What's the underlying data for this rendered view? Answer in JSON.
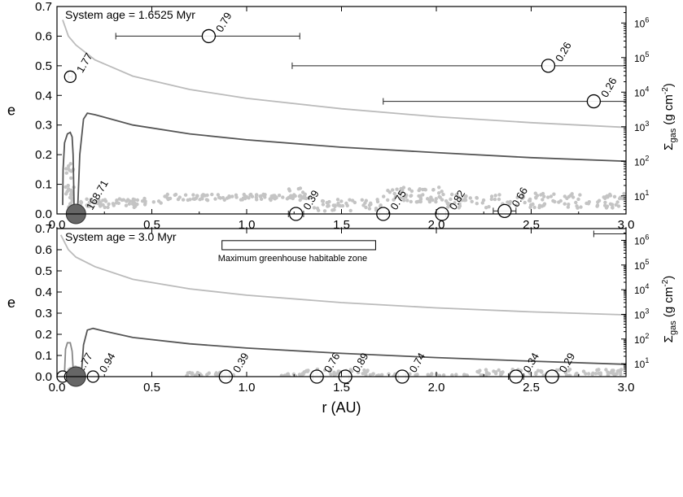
{
  "chart_data": [
    {
      "type": "scatter",
      "annotation": "System age = 1.6525 Myr",
      "xlim": [
        0,
        3.0
      ],
      "ylim": [
        0,
        0.7
      ],
      "ylabel": "e",
      "y2label_main": "Σ",
      "y2label_sub": "gas",
      "y2label_unit": "(g cm",
      "y2label_exp": "-2",
      "y2label_close": ")",
      "xticks": [
        0.0,
        0.5,
        1.0,
        1.5,
        2.0,
        2.5,
        3.0
      ],
      "xtick_labels": [
        "0.0",
        "0.5",
        "1.0",
        "1.5",
        "2.0",
        "2.5",
        "3.0"
      ],
      "yticks": [
        0.0,
        0.1,
        0.2,
        0.3,
        0.4,
        0.5,
        0.6,
        0.7
      ],
      "ytick_labels": [
        "0.0",
        "0.1",
        "0.2",
        "0.3",
        "0.4",
        "0.5",
        "0.6",
        "0.7"
      ],
      "y2_scale": "log",
      "y2lim": [
        3,
        3000000
      ],
      "y2ticks": [
        10,
        100,
        1000,
        10000,
        100000,
        1000000
      ],
      "y2tick_labels": [
        {
          "base": "10",
          "exp": "1"
        },
        {
          "base": "10",
          "exp": "2"
        },
        {
          "base": "10",
          "exp": "3"
        },
        {
          "base": "10",
          "exp": "4"
        },
        {
          "base": "10",
          "exp": "5"
        },
        {
          "base": "10",
          "exp": "6"
        }
      ],
      "gas_curves": [
        {
          "color": "#bbbbbb",
          "points": [
            [
              0.03,
              0.655
            ],
            [
              0.06,
              0.6
            ],
            [
              0.1,
              0.57
            ],
            [
              0.2,
              0.52
            ],
            [
              0.4,
              0.465
            ],
            [
              0.7,
              0.42
            ],
            [
              1.0,
              0.39
            ],
            [
              1.5,
              0.355
            ],
            [
              2.0,
              0.328
            ],
            [
              2.5,
              0.308
            ],
            [
              3.0,
              0.292
            ]
          ]
        },
        {
          "color": "#555555",
          "points": [
            [
              0.03,
              0.03
            ],
            [
              0.032,
              0.15
            ],
            [
              0.04,
              0.24
            ],
            [
              0.055,
              0.27
            ],
            [
              0.07,
              0.275
            ],
            [
              0.08,
              0.26
            ],
            [
              0.085,
              0.2
            ],
            [
              0.088,
              0.1
            ],
            [
              0.09,
              0.02
            ]
          ]
        },
        {
          "color": "#555555",
          "points": [
            [
              0.11,
              0.03
            ],
            [
              0.12,
              0.2
            ],
            [
              0.14,
              0.32
            ],
            [
              0.16,
              0.34
            ],
            [
              0.2,
              0.335
            ],
            [
              0.4,
              0.3
            ],
            [
              0.7,
              0.27
            ],
            [
              1.0,
              0.25
            ],
            [
              1.5,
              0.225
            ],
            [
              2.0,
              0.207
            ],
            [
              2.5,
              0.19
            ],
            [
              3.0,
              0.178
            ]
          ]
        }
      ],
      "planetesimals": [
        {
          "x0": 0.04,
          "x1": 0.09,
          "yBase": 0.02,
          "ySpread": 0.15,
          "n": 30
        },
        {
          "x0": 0.12,
          "x1": 0.55,
          "yBase": 0.022,
          "ySpread": 0.03,
          "n": 55
        },
        {
          "x0": 0.55,
          "x1": 1.3,
          "yBase": 0.046,
          "ySpread": 0.02,
          "n": 90
        },
        {
          "x0": 1.22,
          "x1": 1.35,
          "yBase": 0.05,
          "ySpread": 0.04,
          "n": 15
        },
        {
          "x0": 1.35,
          "x1": 1.72,
          "yBase": 0.01,
          "ySpread": 0.04,
          "n": 45
        },
        {
          "x0": 1.72,
          "x1": 2.05,
          "yBase": 0.04,
          "ySpread": 0.05,
          "n": 55
        },
        {
          "x0": 2.05,
          "x1": 3.0,
          "yBase": 0.02,
          "ySpread": 0.05,
          "n": 120
        }
      ],
      "planets": [
        {
          "x": 0.07,
          "y": 0.463,
          "r": 7,
          "label": "1.77",
          "err": [
            0.06,
            0.08
          ],
          "filled": false
        },
        {
          "x": 0.1,
          "y": 0.0,
          "r": 12,
          "label": "168.71",
          "err": null,
          "filled": true
        },
        {
          "x": 0.8,
          "y": 0.6,
          "r": 8,
          "label": "0.79",
          "err": [
            0.31,
            1.28
          ],
          "filled": false
        },
        {
          "x": 1.26,
          "y": 0.0,
          "r": 8,
          "label": "0.39",
          "err": [
            1.22,
            1.3
          ],
          "filled": false
        },
        {
          "x": 1.72,
          "y": 0.0,
          "r": 8,
          "label": "0.75",
          "err": [
            1.7,
            1.74
          ],
          "filled": false
        },
        {
          "x": 2.03,
          "y": 0.0,
          "r": 8,
          "label": "0.82",
          "err": [
            2.01,
            2.05
          ],
          "filled": false
        },
        {
          "x": 2.36,
          "y": 0.01,
          "r": 8,
          "label": "0.66",
          "err": [
            2.3,
            2.42
          ],
          "filled": false
        },
        {
          "x": 2.59,
          "y": 0.5,
          "r": 8,
          "label": "0.26",
          "err": [
            1.24,
            3.0
          ],
          "filled": false
        },
        {
          "x": 2.83,
          "y": 0.38,
          "r": 8,
          "label": "0.26",
          "err": [
            1.72,
            3.0
          ],
          "filled": false
        }
      ]
    },
    {
      "type": "scatter",
      "annotation": "System age = 3.0 Myr",
      "habitable_zone_label": "Maximum greenhouse habitable zone",
      "habitable_zone": {
        "x0": 0.87,
        "x1": 1.68,
        "y0": 0.6,
        "y1": 0.643
      },
      "xlim": [
        0,
        3.0
      ],
      "ylim": [
        0,
        0.7
      ],
      "xlabel": "r (AU)",
      "ylabel": "e",
      "y2label_main": "Σ",
      "y2label_sub": "gas",
      "y2label_unit": "(g cm",
      "y2label_exp": "-2",
      "y2label_close": ")",
      "xticks": [
        0.0,
        0.5,
        1.0,
        1.5,
        2.0,
        2.5,
        3.0
      ],
      "xtick_labels": [
        "0.0",
        "0.5",
        "1.0",
        "1.5",
        "2.0",
        "2.5",
        "3.0"
      ],
      "yticks": [
        0.0,
        0.1,
        0.2,
        0.3,
        0.4,
        0.5,
        0.6,
        0.7
      ],
      "ytick_labels": [
        "0.0",
        "0.1",
        "0.2",
        "0.3",
        "0.4",
        "0.5",
        "0.6",
        "0.7"
      ],
      "y2_scale": "log",
      "y2lim": [
        3,
        3000000
      ],
      "y2ticks": [
        10,
        100,
        1000,
        10000,
        100000,
        1000000
      ],
      "y2tick_labels": [
        {
          "base": "10",
          "exp": "1"
        },
        {
          "base": "10",
          "exp": "2"
        },
        {
          "base": "10",
          "exp": "3"
        },
        {
          "base": "10",
          "exp": "4"
        },
        {
          "base": "10",
          "exp": "5"
        },
        {
          "base": "10",
          "exp": "6"
        }
      ],
      "gas_curves": [
        {
          "color": "#bbbbbb",
          "points": [
            [
              0.02,
              0.67
            ],
            [
              0.06,
              0.6
            ],
            [
              0.1,
              0.565
            ],
            [
              0.2,
              0.52
            ],
            [
              0.4,
              0.46
            ],
            [
              0.7,
              0.415
            ],
            [
              1.0,
              0.385
            ],
            [
              1.5,
              0.35
            ],
            [
              2.0,
              0.325
            ],
            [
              2.5,
              0.306
            ],
            [
              3.0,
              0.292
            ]
          ]
        },
        {
          "color": "#888888",
          "points": [
            [
              0.04,
              0.02
            ],
            [
              0.045,
              0.13
            ],
            [
              0.055,
              0.16
            ],
            [
              0.07,
              0.16
            ],
            [
              0.08,
              0.12
            ],
            [
              0.085,
              0.04
            ]
          ]
        },
        {
          "color": "#555555",
          "points": [
            [
              0.13,
              0.03
            ],
            [
              0.14,
              0.15
            ],
            [
              0.16,
              0.22
            ],
            [
              0.19,
              0.228
            ],
            [
              0.25,
              0.215
            ],
            [
              0.4,
              0.185
            ],
            [
              0.7,
              0.155
            ],
            [
              1.0,
              0.135
            ],
            [
              1.5,
              0.11
            ],
            [
              2.0,
              0.09
            ],
            [
              2.5,
              0.073
            ],
            [
              3.0,
              0.058
            ]
          ]
        }
      ],
      "planetesimals": [
        {
          "x0": 0.05,
          "x1": 0.12,
          "yBase": 0.0,
          "ySpread": 0.05,
          "n": 12
        },
        {
          "x0": 0.68,
          "x1": 0.95,
          "yBase": 0.003,
          "ySpread": 0.018,
          "n": 25
        },
        {
          "x0": 1.1,
          "x1": 1.3,
          "yBase": 0.002,
          "ySpread": 0.012,
          "n": 12
        },
        {
          "x0": 1.3,
          "x1": 1.65,
          "yBase": 0.005,
          "ySpread": 0.03,
          "n": 40
        },
        {
          "x0": 1.65,
          "x1": 2.2,
          "yBase": 0.002,
          "ySpread": 0.012,
          "n": 30
        },
        {
          "x0": 2.2,
          "x1": 3.0,
          "yBase": 0.005,
          "ySpread": 0.03,
          "n": 90
        }
      ],
      "planets": [
        {
          "x": 0.03,
          "y": 0.0,
          "r": 7,
          "label": "",
          "err": null,
          "filled": false
        },
        {
          "x": 0.07,
          "y": 0.0,
          "r": 7,
          "label": "1.77",
          "err": null,
          "filled": false
        },
        {
          "x": 0.1,
          "y": 0.0,
          "r": 12,
          "label": "",
          "err": null,
          "filled": true
        },
        {
          "x": 0.19,
          "y": 0.0,
          "r": 7,
          "label": "0.94",
          "err": null,
          "filled": false
        },
        {
          "x": 0.89,
          "y": 0.0,
          "r": 8,
          "label": "0.39",
          "err": [
            0.87,
            0.91
          ],
          "filled": false
        },
        {
          "x": 1.37,
          "y": 0.0,
          "r": 8,
          "label": "0.76",
          "err": [
            1.35,
            1.39
          ],
          "filled": false
        },
        {
          "x": 1.52,
          "y": 0.0,
          "r": 8,
          "label": "0.89",
          "err": [
            1.5,
            1.54
          ],
          "filled": false
        },
        {
          "x": 1.82,
          "y": 0.0,
          "r": 8,
          "label": "0.74",
          "err": [
            1.8,
            1.84
          ],
          "filled": false
        },
        {
          "x": 2.42,
          "y": 0.0,
          "r": 8,
          "label": "0.34",
          "err": [
            2.38,
            2.46
          ],
          "filled": false
        },
        {
          "x": 2.61,
          "y": 0.0,
          "r": 8,
          "label": "0.29",
          "err": [
            2.58,
            2.64
          ],
          "filled": false
        },
        {
          "x": 2.9,
          "y": 0.675,
          "r": 0,
          "label": "",
          "err": [
            2.83,
            3.0
          ],
          "filled": false
        }
      ]
    }
  ]
}
